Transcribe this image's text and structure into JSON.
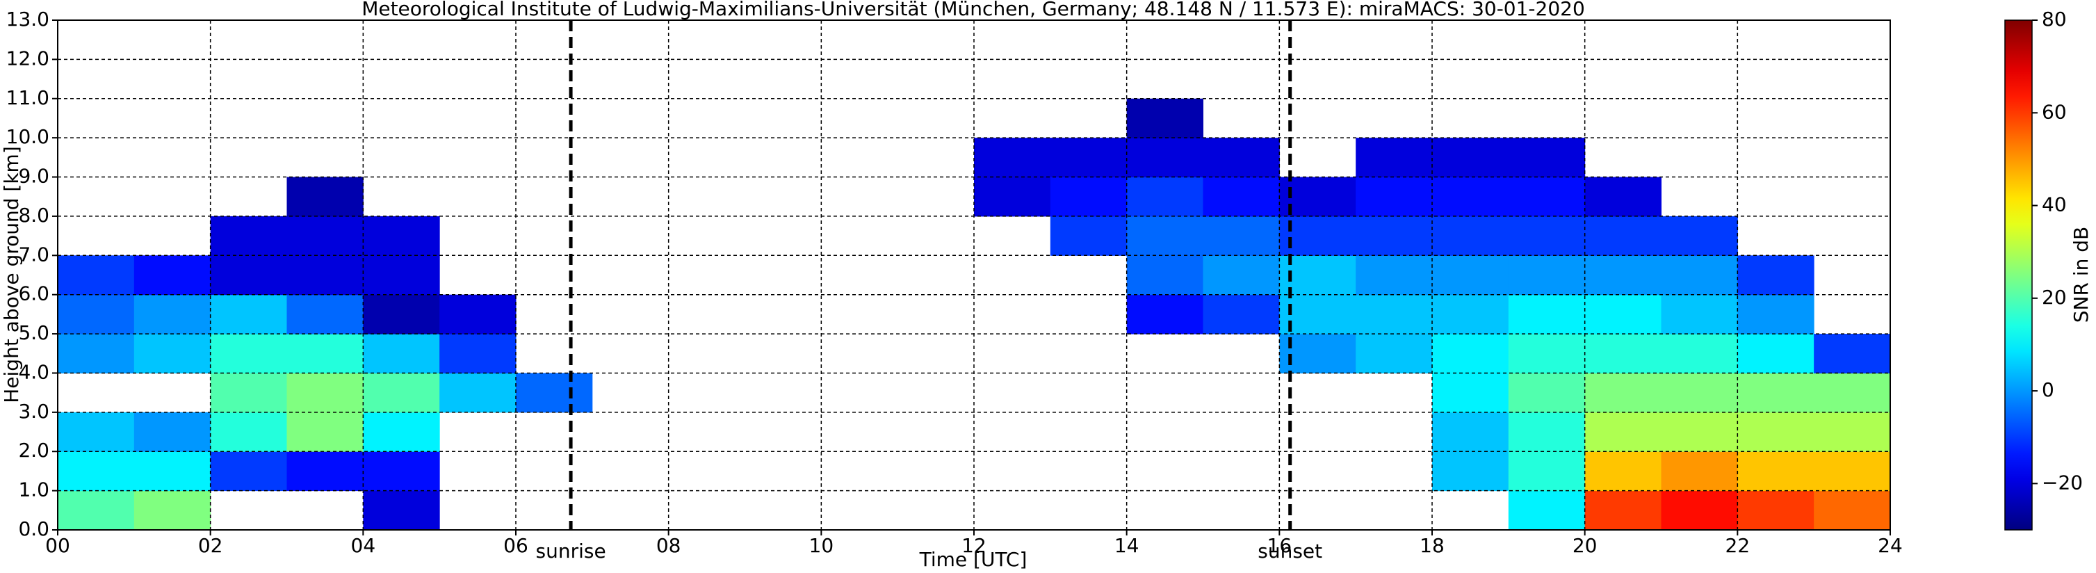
{
  "chart_data": {
    "type": "heatmap",
    "title": "Meteorological Institute of Ludwig-Maximilians-Universität (München, Germany; 48.148 N / 11.573 E):    miraMACS: 30-01-2020",
    "x_label": "Time [UTC]",
    "y_label": "Height above ground [km]",
    "colorbar_label": "SNR in dB",
    "colormap": "jet",
    "clim": [
      -30,
      80
    ],
    "cticks": [
      {
        "value": -20,
        "label": "−20"
      },
      0,
      20,
      40,
      60,
      80
    ],
    "xlim": [
      0,
      24
    ],
    "ylim": [
      0,
      13
    ],
    "xticks": [
      {
        "value": 0,
        "label": "00"
      },
      {
        "value": 2,
        "label": "02"
      },
      {
        "value": 4,
        "label": "04"
      },
      {
        "value": 6,
        "label": "06"
      },
      {
        "value": 8,
        "label": "08"
      },
      {
        "value": 10,
        "label": "10"
      },
      {
        "value": 12,
        "label": "12"
      },
      {
        "value": 14,
        "label": "14"
      },
      {
        "value": 16,
        "label": "16"
      },
      {
        "value": 18,
        "label": "18"
      },
      {
        "value": 20,
        "label": "20"
      },
      {
        "value": 22,
        "label": "22"
      },
      {
        "value": 24,
        "label": "24"
      }
    ],
    "yticks": [
      {
        "value": 0,
        "label": "0.0"
      },
      {
        "value": 1,
        "label": "1.0"
      },
      {
        "value": 2,
        "label": "2.0"
      },
      {
        "value": 3,
        "label": "3.0"
      },
      {
        "value": 4,
        "label": "4.0"
      },
      {
        "value": 5,
        "label": "5.0"
      },
      {
        "value": 6,
        "label": "6.0"
      },
      {
        "value": 7,
        "label": "7.0"
      },
      {
        "value": 8,
        "label": "8.0"
      },
      {
        "value": 9,
        "label": "9.0"
      },
      {
        "value": 10,
        "label": "10.0"
      },
      {
        "value": 11,
        "label": "11.0"
      },
      {
        "value": 12,
        "label": "12.0"
      },
      {
        "value": 13,
        "label": "13.0"
      }
    ],
    "grid": true,
    "annotations": [
      {
        "text": "sunrise",
        "x": 6.72
      },
      {
        "text": "sunset",
        "x": 16.14
      }
    ],
    "xbins": [
      0,
      1,
      2,
      3,
      4,
      5,
      6,
      7,
      8,
      9,
      10,
      11,
      12,
      13,
      14,
      15,
      16,
      17,
      18,
      19,
      20,
      21,
      22,
      23,
      24
    ],
    "ybins": [
      0,
      1,
      2,
      3,
      4,
      5,
      6,
      7,
      8,
      9,
      10,
      11,
      12,
      13
    ],
    "z": [
      [
        20,
        25,
        null,
        null,
        -20,
        null,
        null,
        null,
        null,
        null,
        null,
        null,
        null,
        null,
        null,
        null,
        null,
        null,
        null,
        10,
        60,
        65,
        60,
        55
      ],
      [
        10,
        10,
        -10,
        -15,
        -15,
        null,
        null,
        null,
        null,
        null,
        null,
        null,
        null,
        null,
        null,
        null,
        null,
        null,
        5,
        15,
        45,
        50,
        45,
        45
      ],
      [
        5,
        0,
        15,
        25,
        10,
        null,
        null,
        null,
        null,
        null,
        null,
        null,
        null,
        null,
        null,
        null,
        null,
        null,
        5,
        15,
        30,
        30,
        30,
        30
      ],
      [
        null,
        null,
        20,
        25,
        20,
        5,
        -5,
        null,
        null,
        null,
        null,
        null,
        null,
        null,
        null,
        null,
        null,
        null,
        10,
        20,
        25,
        25,
        25,
        25
      ],
      [
        0,
        5,
        15,
        15,
        5,
        -10,
        null,
        null,
        null,
        null,
        null,
        null,
        null,
        null,
        null,
        null,
        0,
        5,
        10,
        15,
        15,
        15,
        10,
        -10
      ],
      [
        -5,
        0,
        5,
        -5,
        -25,
        -20,
        null,
        null,
        null,
        null,
        null,
        null,
        null,
        null,
        -15,
        -10,
        5,
        5,
        5,
        10,
        10,
        5,
        0,
        null
      ],
      [
        -10,
        -15,
        -20,
        -20,
        -20,
        null,
        null,
        null,
        null,
        null,
        null,
        null,
        null,
        null,
        -5,
        0,
        5,
        0,
        0,
        0,
        0,
        0,
        -10,
        null
      ],
      [
        null,
        null,
        -20,
        -20,
        -20,
        null,
        null,
        null,
        null,
        null,
        null,
        null,
        null,
        -10,
        -5,
        -5,
        -10,
        -10,
        -10,
        -10,
        -10,
        -10,
        null,
        null
      ],
      [
        null,
        null,
        null,
        -25,
        null,
        null,
        null,
        null,
        null,
        null,
        null,
        null,
        -20,
        -15,
        -10,
        -15,
        -20,
        -15,
        -15,
        -15,
        -20,
        null,
        null,
        null
      ],
      [
        null,
        null,
        null,
        null,
        null,
        null,
        null,
        null,
        null,
        null,
        null,
        null,
        -20,
        -20,
        -20,
        -20,
        null,
        -20,
        -20,
        -20,
        null,
        null,
        null,
        null
      ],
      [
        null,
        null,
        null,
        null,
        null,
        null,
        null,
        null,
        null,
        null,
        null,
        null,
        null,
        null,
        -25,
        null,
        null,
        null,
        null,
        null,
        null,
        null,
        null,
        null
      ],
      [
        null,
        null,
        null,
        null,
        null,
        null,
        null,
        null,
        null,
        null,
        null,
        null,
        null,
        null,
        null,
        null,
        null,
        null,
        null,
        null,
        null,
        null,
        null,
        null
      ],
      [
        null,
        null,
        null,
        null,
        null,
        null,
        null,
        null,
        null,
        null,
        null,
        null,
        null,
        null,
        null,
        null,
        null,
        null,
        null,
        null,
        null,
        null,
        null,
        null
      ]
    ]
  }
}
